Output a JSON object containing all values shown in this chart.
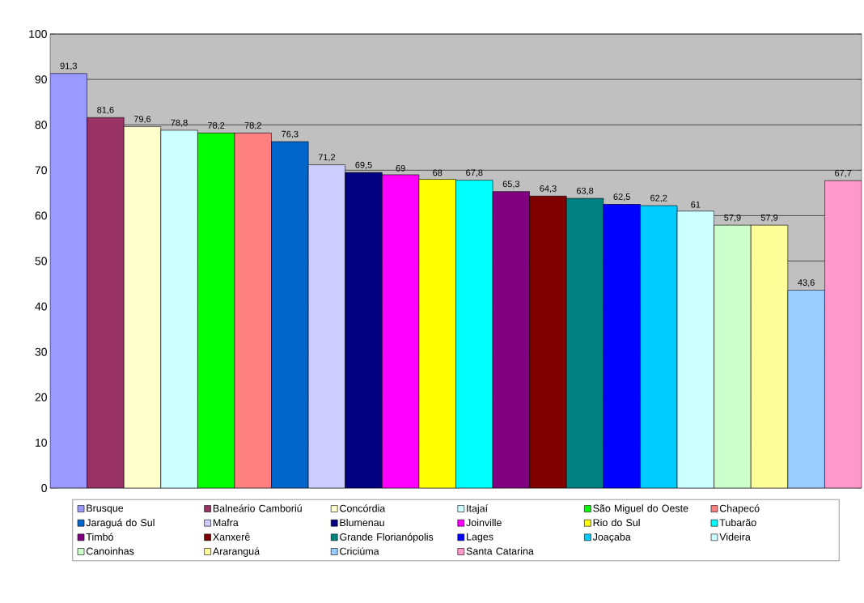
{
  "chart_data": {
    "type": "bar",
    "categories": [
      null,
      null,
      null,
      null,
      null,
      null,
      null,
      null,
      null,
      null,
      null,
      null,
      null,
      null,
      null,
      null,
      null,
      null,
      null,
      null,
      null,
      null
    ],
    "series": [
      {
        "name": "Brusque",
        "color": "#9999ff",
        "values": [
          91.3,
          null,
          null,
          null,
          null,
          null,
          null,
          null,
          null,
          null,
          null,
          null,
          null,
          null,
          null,
          null,
          null,
          null,
          null,
          null,
          null,
          null
        ],
        "value_labels": [
          "91,3",
          null,
          null,
          null,
          null,
          null,
          null,
          null,
          null,
          null,
          null,
          null,
          null,
          null,
          null,
          null,
          null,
          null,
          null,
          null,
          null,
          null
        ]
      },
      {
        "name": "Balneário Camboriú",
        "color": "#993366",
        "values": [
          null,
          81.6,
          null,
          null,
          null,
          null,
          null,
          null,
          null,
          null,
          null,
          null,
          null,
          null,
          null,
          null,
          null,
          null,
          null,
          null,
          null,
          null
        ],
        "value_labels": [
          null,
          "81,6",
          null,
          null,
          null,
          null,
          null,
          null,
          null,
          null,
          null,
          null,
          null,
          null,
          null,
          null,
          null,
          null,
          null,
          null,
          null,
          null
        ]
      },
      {
        "name": "Concórdia",
        "color": "#ffffcc",
        "values": [
          null,
          null,
          79.6,
          null,
          null,
          null,
          null,
          null,
          null,
          null,
          null,
          null,
          null,
          null,
          null,
          null,
          null,
          null,
          null,
          null,
          null,
          null
        ],
        "value_labels": [
          null,
          null,
          "79,6",
          null,
          null,
          null,
          null,
          null,
          null,
          null,
          null,
          null,
          null,
          null,
          null,
          null,
          null,
          null,
          null,
          null,
          null,
          null
        ]
      },
      {
        "name": "Itajaí",
        "color": "#ccffff",
        "values": [
          null,
          null,
          null,
          78.8,
          null,
          null,
          null,
          null,
          null,
          null,
          null,
          null,
          null,
          null,
          null,
          null,
          null,
          null,
          null,
          null,
          null,
          null
        ],
        "value_labels": [
          null,
          null,
          null,
          "78,8",
          null,
          null,
          null,
          null,
          null,
          null,
          null,
          null,
          null,
          null,
          null,
          null,
          null,
          null,
          null,
          null,
          null,
          null
        ]
      },
      {
        "name": "São Miguel do Oeste",
        "color": "#00ff00",
        "values": [
          null,
          null,
          null,
          null,
          78.2,
          null,
          null,
          null,
          null,
          null,
          null,
          null,
          null,
          null,
          null,
          null,
          null,
          null,
          null,
          null,
          null,
          null
        ],
        "value_labels": [
          null,
          null,
          null,
          null,
          "78,2",
          null,
          null,
          null,
          null,
          null,
          null,
          null,
          null,
          null,
          null,
          null,
          null,
          null,
          null,
          null,
          null,
          null
        ]
      },
      {
        "name": "Chapecó",
        "color": "#ff8080",
        "values": [
          null,
          null,
          null,
          null,
          null,
          78.2,
          null,
          null,
          null,
          null,
          null,
          null,
          null,
          null,
          null,
          null,
          null,
          null,
          null,
          null,
          null,
          null
        ],
        "value_labels": [
          null,
          null,
          null,
          null,
          null,
          "78,2",
          null,
          null,
          null,
          null,
          null,
          null,
          null,
          null,
          null,
          null,
          null,
          null,
          null,
          null,
          null,
          null
        ]
      },
      {
        "name": "Jaraguá do Sul",
        "color": "#0066cc",
        "values": [
          null,
          null,
          null,
          null,
          null,
          null,
          76.3,
          null,
          null,
          null,
          null,
          null,
          null,
          null,
          null,
          null,
          null,
          null,
          null,
          null,
          null,
          null
        ],
        "value_labels": [
          null,
          null,
          null,
          null,
          null,
          null,
          "76,3",
          null,
          null,
          null,
          null,
          null,
          null,
          null,
          null,
          null,
          null,
          null,
          null,
          null,
          null,
          null
        ]
      },
      {
        "name": "Mafra",
        "color": "#ccccff",
        "values": [
          null,
          null,
          null,
          null,
          null,
          null,
          null,
          71.2,
          null,
          null,
          null,
          null,
          null,
          null,
          null,
          null,
          null,
          null,
          null,
          null,
          null,
          null
        ],
        "value_labels": [
          null,
          null,
          null,
          null,
          null,
          null,
          null,
          "71,2",
          null,
          null,
          null,
          null,
          null,
          null,
          null,
          null,
          null,
          null,
          null,
          null,
          null,
          null
        ]
      },
      {
        "name": "Blumenau",
        "color": "#000080",
        "values": [
          null,
          null,
          null,
          null,
          null,
          null,
          null,
          null,
          69.5,
          null,
          null,
          null,
          null,
          null,
          null,
          null,
          null,
          null,
          null,
          null,
          null,
          null
        ],
        "value_labels": [
          null,
          null,
          null,
          null,
          null,
          null,
          null,
          null,
          "69,5",
          null,
          null,
          null,
          null,
          null,
          null,
          null,
          null,
          null,
          null,
          null,
          null,
          null
        ]
      },
      {
        "name": "Joinville",
        "color": "#ff00ff",
        "values": [
          null,
          null,
          null,
          null,
          null,
          null,
          null,
          null,
          null,
          69,
          null,
          null,
          null,
          null,
          null,
          null,
          null,
          null,
          null,
          null,
          null,
          null
        ],
        "value_labels": [
          null,
          null,
          null,
          null,
          null,
          null,
          null,
          null,
          null,
          "69",
          null,
          null,
          null,
          null,
          null,
          null,
          null,
          null,
          null,
          null,
          null,
          null
        ]
      },
      {
        "name": "Rio do Sul",
        "color": "#ffff00",
        "values": [
          null,
          null,
          null,
          null,
          null,
          null,
          null,
          null,
          null,
          null,
          68,
          null,
          null,
          null,
          null,
          null,
          null,
          null,
          null,
          null,
          null,
          null
        ],
        "value_labels": [
          null,
          null,
          null,
          null,
          null,
          null,
          null,
          null,
          null,
          null,
          "68",
          null,
          null,
          null,
          null,
          null,
          null,
          null,
          null,
          null,
          null,
          null
        ]
      },
      {
        "name": "Tubarão",
        "color": "#00ffff",
        "values": [
          null,
          null,
          null,
          null,
          null,
          null,
          null,
          null,
          null,
          null,
          null,
          67.8,
          null,
          null,
          null,
          null,
          null,
          null,
          null,
          null,
          null,
          null
        ],
        "value_labels": [
          null,
          null,
          null,
          null,
          null,
          null,
          null,
          null,
          null,
          null,
          null,
          "67,8",
          null,
          null,
          null,
          null,
          null,
          null,
          null,
          null,
          null,
          null
        ]
      },
      {
        "name": "Timbó",
        "color": "#800080",
        "values": [
          null,
          null,
          null,
          null,
          null,
          null,
          null,
          null,
          null,
          null,
          null,
          null,
          65.3,
          null,
          null,
          null,
          null,
          null,
          null,
          null,
          null,
          null
        ],
        "value_labels": [
          null,
          null,
          null,
          null,
          null,
          null,
          null,
          null,
          null,
          null,
          null,
          null,
          "65,3",
          null,
          null,
          null,
          null,
          null,
          null,
          null,
          null,
          null
        ]
      },
      {
        "name": "Xanxerê",
        "color": "#800000",
        "values": [
          null,
          null,
          null,
          null,
          null,
          null,
          null,
          null,
          null,
          null,
          null,
          null,
          null,
          64.3,
          null,
          null,
          null,
          null,
          null,
          null,
          null,
          null
        ],
        "value_labels": [
          null,
          null,
          null,
          null,
          null,
          null,
          null,
          null,
          null,
          null,
          null,
          null,
          null,
          "64,3",
          null,
          null,
          null,
          null,
          null,
          null,
          null,
          null
        ]
      },
      {
        "name": "Grande Florianópolis",
        "color": "#008080",
        "values": [
          null,
          null,
          null,
          null,
          null,
          null,
          null,
          null,
          null,
          null,
          null,
          null,
          null,
          null,
          63.8,
          null,
          null,
          null,
          null,
          null,
          null,
          null
        ],
        "value_labels": [
          null,
          null,
          null,
          null,
          null,
          null,
          null,
          null,
          null,
          null,
          null,
          null,
          null,
          null,
          "63,8",
          null,
          null,
          null,
          null,
          null,
          null,
          null
        ]
      },
      {
        "name": "Lages",
        "color": "#0000ff",
        "values": [
          null,
          null,
          null,
          null,
          null,
          null,
          null,
          null,
          null,
          null,
          null,
          null,
          null,
          null,
          null,
          62.5,
          null,
          null,
          null,
          null,
          null,
          null
        ],
        "value_labels": [
          null,
          null,
          null,
          null,
          null,
          null,
          null,
          null,
          null,
          null,
          null,
          null,
          null,
          null,
          null,
          "62,5",
          null,
          null,
          null,
          null,
          null,
          null
        ]
      },
      {
        "name": "Joaçaba",
        "color": "#00ccff",
        "values": [
          null,
          null,
          null,
          null,
          null,
          null,
          null,
          null,
          null,
          null,
          null,
          null,
          null,
          null,
          null,
          null,
          62.2,
          null,
          null,
          null,
          null,
          null
        ],
        "value_labels": [
          null,
          null,
          null,
          null,
          null,
          null,
          null,
          null,
          null,
          null,
          null,
          null,
          null,
          null,
          null,
          null,
          "62,2",
          null,
          null,
          null,
          null,
          null
        ]
      },
      {
        "name": "Videira",
        "color": "#ccffff",
        "values": [
          null,
          null,
          null,
          null,
          null,
          null,
          null,
          null,
          null,
          null,
          null,
          null,
          null,
          null,
          null,
          null,
          null,
          61,
          null,
          null,
          null,
          null
        ],
        "value_labels": [
          null,
          null,
          null,
          null,
          null,
          null,
          null,
          null,
          null,
          null,
          null,
          null,
          null,
          null,
          null,
          null,
          null,
          "61",
          null,
          null,
          null,
          null
        ]
      },
      {
        "name": "Canoinhas",
        "color": "#ccffcc",
        "values": [
          null,
          null,
          null,
          null,
          null,
          null,
          null,
          null,
          null,
          null,
          null,
          null,
          null,
          null,
          null,
          null,
          null,
          null,
          57.9,
          null,
          null,
          null
        ],
        "value_labels": [
          null,
          null,
          null,
          null,
          null,
          null,
          null,
          null,
          null,
          null,
          null,
          null,
          null,
          null,
          null,
          null,
          null,
          null,
          "57,9",
          null,
          null,
          null
        ]
      },
      {
        "name": "Araranguá",
        "color": "#ffff99",
        "values": [
          null,
          null,
          null,
          null,
          null,
          null,
          null,
          null,
          null,
          null,
          null,
          null,
          null,
          null,
          null,
          null,
          null,
          null,
          null,
          57.9,
          null,
          null
        ],
        "value_labels": [
          null,
          null,
          null,
          null,
          null,
          null,
          null,
          null,
          null,
          null,
          null,
          null,
          null,
          null,
          null,
          null,
          null,
          null,
          null,
          "57,9",
          null,
          null
        ]
      },
      {
        "name": "Criciúma",
        "color": "#99ccff",
        "values": [
          null,
          null,
          null,
          null,
          null,
          null,
          null,
          null,
          null,
          null,
          null,
          null,
          null,
          null,
          null,
          null,
          null,
          null,
          null,
          null,
          43.6,
          null
        ],
        "value_labels": [
          null,
          null,
          null,
          null,
          null,
          null,
          null,
          null,
          null,
          null,
          null,
          null,
          null,
          null,
          null,
          null,
          null,
          null,
          null,
          null,
          "43,6",
          null
        ]
      },
      {
        "name": "Santa Catarina",
        "color": "#ff99cc",
        "values": [
          null,
          null,
          null,
          null,
          null,
          null,
          null,
          null,
          null,
          null,
          null,
          null,
          null,
          null,
          null,
          null,
          null,
          null,
          null,
          null,
          null,
          67.7
        ],
        "value_labels": [
          null,
          null,
          null,
          null,
          null,
          null,
          null,
          null,
          null,
          null,
          null,
          null,
          null,
          null,
          null,
          null,
          null,
          null,
          null,
          null,
          null,
          "67,7"
        ]
      }
    ],
    "ylim": [
      0,
      100
    ],
    "yticks": [
      0,
      10,
      20,
      30,
      40,
      50,
      60,
      70,
      80,
      90,
      100
    ],
    "grid": "y",
    "legend": "bottom"
  }
}
